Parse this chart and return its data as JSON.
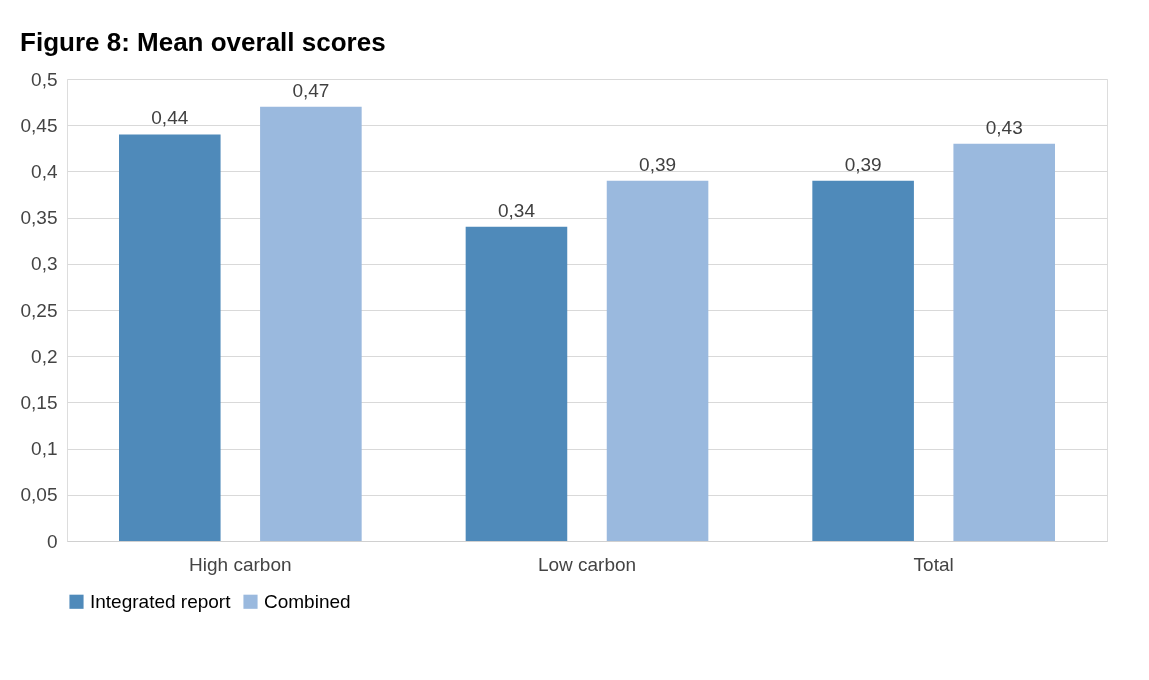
{
  "chart_data": {
    "type": "bar",
    "title": "Figure 8: Mean overall scores",
    "categories": [
      "High carbon",
      "Low carbon",
      "Total"
    ],
    "series": [
      {
        "name": "Integrated report",
        "color": "#4f8aba",
        "values": [
          0.44,
          0.34,
          0.39
        ],
        "value_labels": [
          "0,44",
          "0,34",
          "0,39"
        ]
      },
      {
        "name": "Combined",
        "color": "#9ab9de",
        "values": [
          0.47,
          0.39,
          0.43
        ],
        "value_labels": [
          "0,47",
          "0,39",
          "0,43"
        ]
      }
    ],
    "ylim": [
      0,
      0.5
    ],
    "yticks": [
      0,
      {
        "value": 0.05,
        "label": "0,05"
      },
      {
        "value": 0.1,
        "label": "0,1"
      },
      {
        "value": 0.15,
        "label": "0,15"
      },
      {
        "value": 0.2,
        "label": "0,2"
      },
      {
        "value": 0.25,
        "label": "0,25"
      },
      {
        "value": 0.3,
        "label": "0,3"
      },
      {
        "value": 0.35,
        "label": "0,35"
      },
      {
        "value": 0.4,
        "label": "0,4"
      },
      {
        "value": 0.45,
        "label": "0,45"
      },
      {
        "value": 0.5,
        "label": "0,5"
      }
    ],
    "grid": "y",
    "legend": "bottom"
  }
}
